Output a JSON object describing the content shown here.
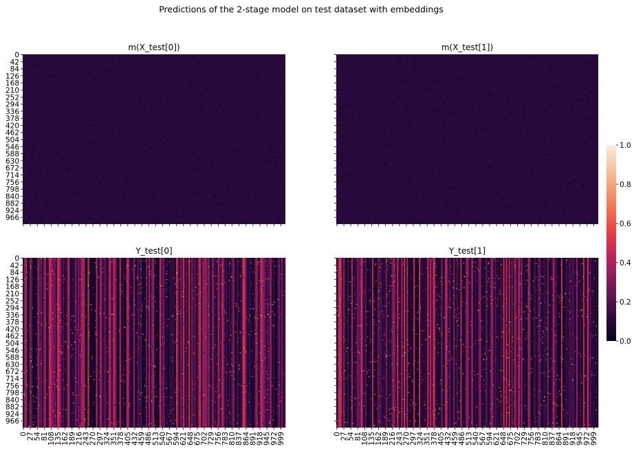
{
  "figure_title": "Predictions of the 2-stage model on test dataset with embeddings",
  "colors": {
    "colormap": [
      "#03051a",
      "#2b0b3f",
      "#5c1451",
      "#8f1d5b",
      "#c1235a",
      "#e83f3f",
      "#f3704f",
      "#f59e73",
      "#f6c7a4",
      "#faebdd"
    ],
    "panel_background": "#1f1033"
  },
  "colorbar": {
    "ticks": [
      "0.0",
      "0.2",
      "0.4",
      "0.6",
      "0.8",
      "1.0"
    ],
    "range": [
      0,
      1
    ]
  },
  "chart_data": [
    {
      "type": "heatmap",
      "title": "m(X_test[0])",
      "x_tick_labels": [],
      "y_tick_labels": [
        "0",
        "42",
        "84",
        "126",
        "168",
        "210",
        "252",
        "294",
        "336",
        "378",
        "420",
        "462",
        "504",
        "546",
        "588",
        "630",
        "672",
        "714",
        "756",
        "798",
        "840",
        "882",
        "924",
        "966"
      ],
      "value_range": [
        0,
        1
      ],
      "typical_value": 0.1,
      "pattern": "uniform"
    },
    {
      "type": "heatmap",
      "title": "m(X_test[1])",
      "x_tick_labels": [],
      "y_tick_labels": [],
      "value_range": [
        0,
        1
      ],
      "typical_value": 0.1,
      "pattern": "uniform"
    },
    {
      "type": "heatmap",
      "title": "Y_test[0]",
      "x_tick_labels": [
        "0",
        "27",
        "54",
        "81",
        "108",
        "135",
        "162",
        "189",
        "216",
        "243",
        "270",
        "297",
        "324",
        "351",
        "378",
        "405",
        "432",
        "459",
        "486",
        "513",
        "540",
        "567",
        "594",
        "621",
        "648",
        "675",
        "702",
        "729",
        "756",
        "783",
        "810",
        "837",
        "864",
        "891",
        "918",
        "945",
        "972",
        "999"
      ],
      "y_tick_labels": [
        "0",
        "42",
        "84",
        "126",
        "168",
        "210",
        "252",
        "294",
        "336",
        "378",
        "420",
        "462",
        "504",
        "546",
        "588",
        "630",
        "672",
        "714",
        "756",
        "798",
        "840",
        "882",
        "924",
        "966"
      ],
      "value_range": [
        0,
        1
      ],
      "typical_value": 0.15,
      "pattern": "vertical-stripes"
    },
    {
      "type": "heatmap",
      "title": "Y_test[1]",
      "x_tick_labels": [
        "0",
        "27",
        "54",
        "81",
        "108",
        "135",
        "162",
        "189",
        "216",
        "243",
        "270",
        "297",
        "324",
        "351",
        "378",
        "405",
        "432",
        "459",
        "486",
        "513",
        "540",
        "567",
        "594",
        "621",
        "648",
        "675",
        "702",
        "729",
        "756",
        "783",
        "810",
        "837",
        "864",
        "891",
        "918",
        "945",
        "972",
        "999"
      ],
      "y_tick_labels": [],
      "value_range": [
        0,
        1
      ],
      "typical_value": 0.15,
      "pattern": "vertical-stripes"
    }
  ]
}
